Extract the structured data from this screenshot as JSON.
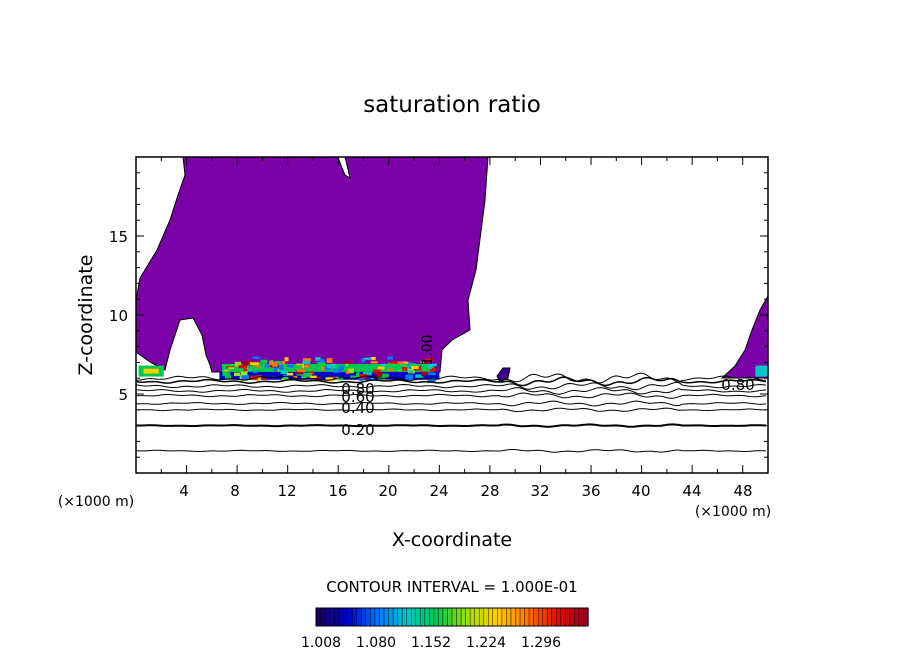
{
  "chart_data": {
    "type": "heatmap",
    "title": "saturation ratio",
    "xlabel": "X-coordinate",
    "ylabel": "Z-coordinate",
    "x_unit": "(×1000 m)",
    "xlim": [
      0,
      50
    ],
    "ylim": [
      0,
      20
    ],
    "xticks": [
      "4",
      "8",
      "12",
      "16",
      "20",
      "24",
      "28",
      "32",
      "36",
      "40",
      "44",
      "48"
    ],
    "yticks": [
      "5",
      "10",
      "15"
    ],
    "contour_labels": [
      "0.20",
      "0.40",
      "0.60",
      "0.80",
      "0.80",
      "1.00"
    ],
    "contour_interval_text": "CONTOUR INTERVAL = 1.000E-01",
    "colorbar": {
      "range": [
        1.008,
        1.332
      ],
      "tick_labels": [
        "1.008",
        "1.080",
        "1.152",
        "1.224",
        "1.296"
      ],
      "colors": [
        "#1a0060",
        "#0000c8",
        "#0078ff",
        "#00c8c8",
        "#00c850",
        "#a0e000",
        "#ffd000",
        "#ff7800",
        "#e01000",
        "#a00020"
      ]
    },
    "fill_color": "#7a00a8"
  }
}
